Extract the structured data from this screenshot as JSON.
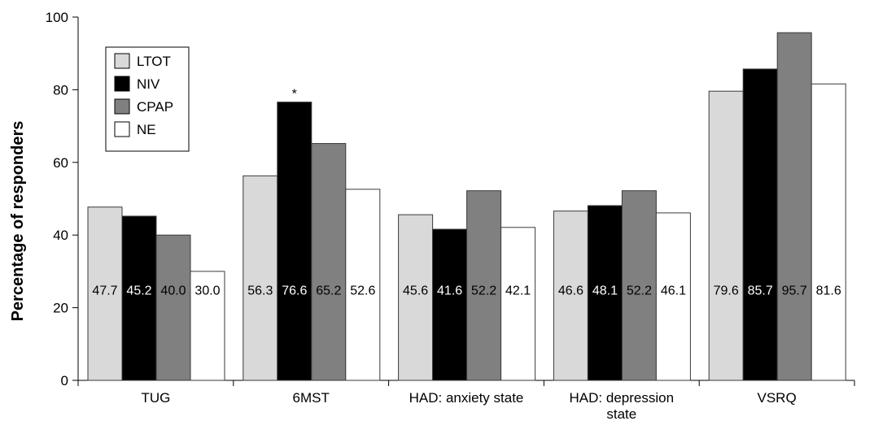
{
  "chart_data": {
    "type": "bar",
    "ylabel": "Percentage of responders",
    "xlabel": "",
    "ylim": [
      0,
      100
    ],
    "yticks": [
      "0",
      "20",
      "40",
      "60",
      "80",
      "100"
    ],
    "categories": [
      [
        "TUG"
      ],
      [
        "6MST"
      ],
      [
        "HAD: anxiety state"
      ],
      [
        "HAD: depression",
        "state"
      ],
      [
        "VSRQ"
      ]
    ],
    "series": [
      {
        "name": "LTOT",
        "color": "#d9d9d9",
        "label_color": "#000000",
        "values": [
          47.7,
          56.3,
          45.6,
          46.6,
          79.6
        ],
        "labels": [
          "47.7",
          "56.3",
          "45.6",
          "46.6",
          "79.6"
        ]
      },
      {
        "name": "NIV",
        "color": "#000000",
        "label_color": "#ffffff",
        "values": [
          45.2,
          76.6,
          41.6,
          48.1,
          85.7
        ],
        "labels": [
          "45.2",
          "76.6",
          "41.6",
          "48.1",
          "85.7"
        ]
      },
      {
        "name": "CPAP",
        "color": "#808080",
        "label_color": "#000000",
        "values": [
          40.0,
          65.2,
          52.2,
          52.2,
          95.7
        ],
        "labels": [
          "40.0",
          "65.2",
          "52.2",
          "52.2",
          "95.7"
        ]
      },
      {
        "name": "NE",
        "color": "#ffffff",
        "label_color": "#000000",
        "values": [
          30.0,
          52.6,
          42.1,
          46.1,
          81.6
        ],
        "labels": [
          "30.0",
          "52.6",
          "42.1",
          "46.1",
          "81.6"
        ]
      }
    ],
    "annotations": [
      {
        "text": "*",
        "category_index": 1,
        "series_index": 1
      }
    ],
    "legend": "top-left",
    "grid": false
  }
}
